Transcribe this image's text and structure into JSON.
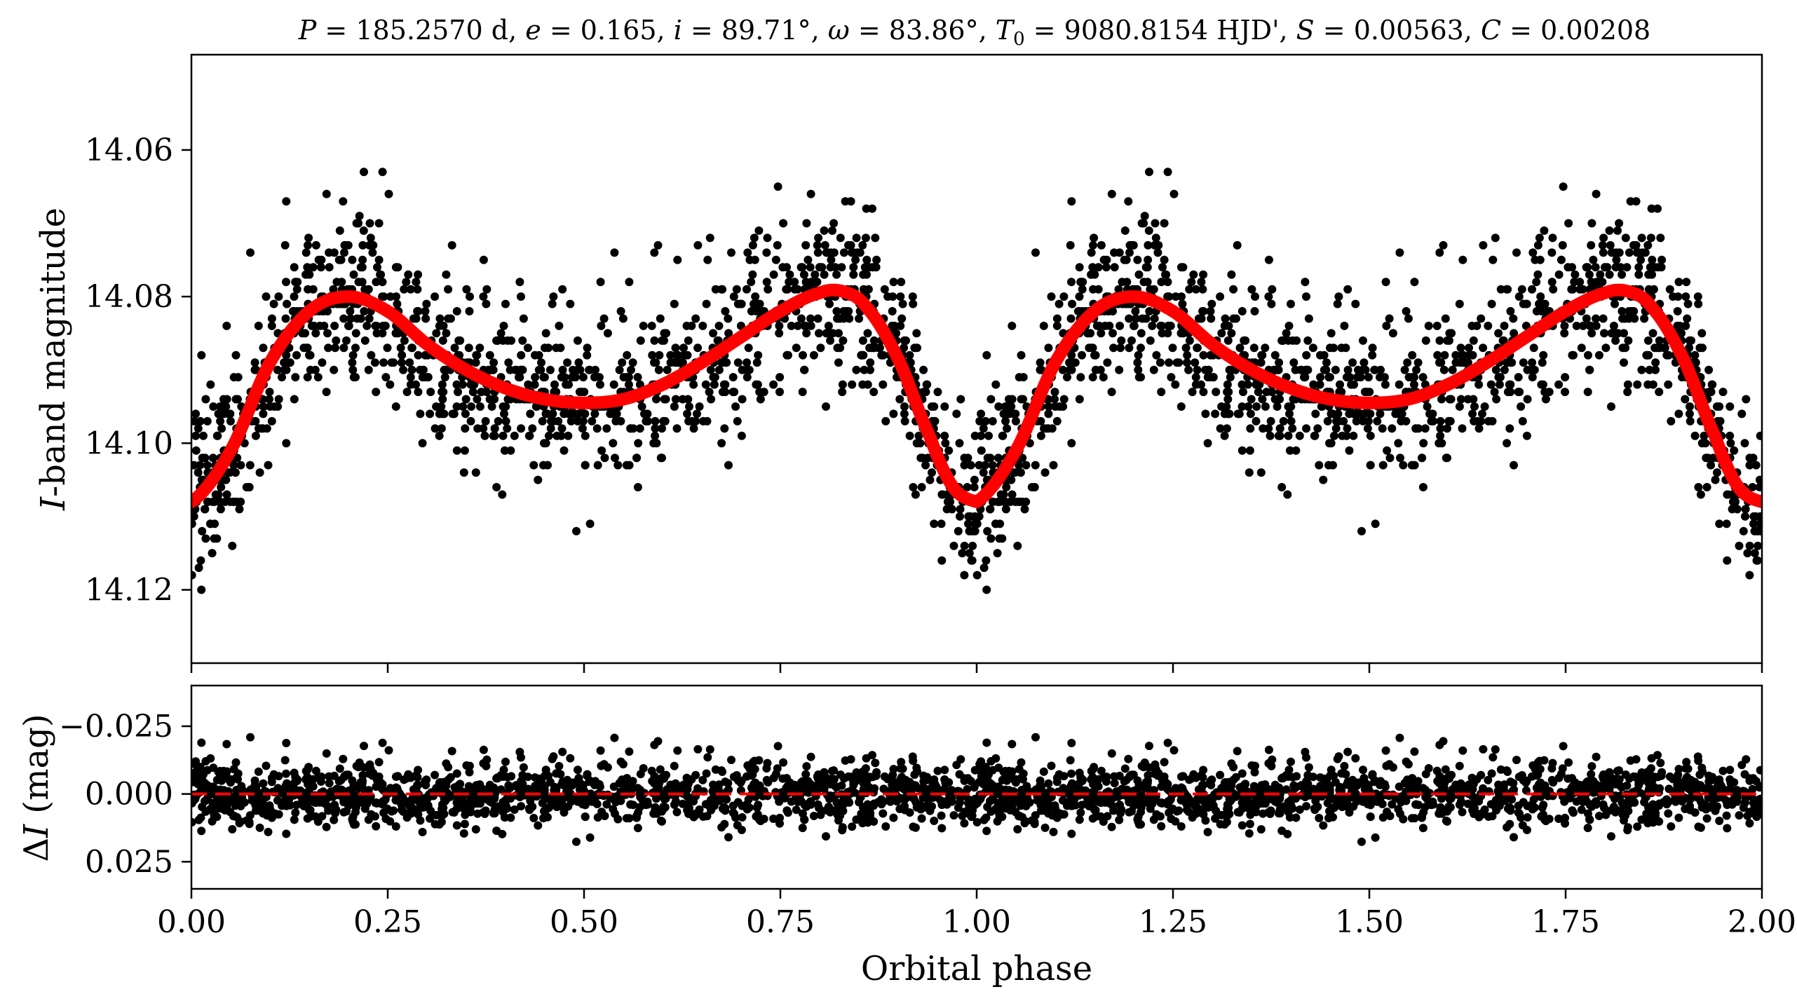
{
  "chart_data": [
    {
      "panel": "top",
      "type": "scatter",
      "title": "P = 185.2570 d, e = 0.165, i = 89.71°, ω = 83.86°, T0 = 9080.8154 HJD', S = 0.00563, C = 0.00208",
      "title_parts": {
        "P_sym": "P",
        "P_val": " = 185.2570 d, ",
        "e_sym": "e",
        "e_val": " = 0.165, ",
        "i_sym": "i",
        "i_val": " = 89.71°, ",
        "w_sym": "ω",
        "w_val": " = 83.86°, ",
        "T_sym": "T",
        "T_sub": "0",
        "T_val": " = 9080.8154 HJD', ",
        "S_sym": "S",
        "S_val": " = 0.00563, ",
        "C_sym": "C",
        "C_val": " = 0.00208"
      },
      "ylabel_italic": "I",
      "ylabel_rest": "-band magnitude",
      "xlim": [
        0.0,
        2.0
      ],
      "ylim": [
        14.13,
        14.047
      ],
      "y_inverted": true,
      "yticks": [
        14.06,
        14.08,
        14.1,
        14.12
      ],
      "ytick_labels": [
        "14.06",
        "14.08",
        "14.10",
        "14.12"
      ],
      "xticks": [
        0.0,
        0.25,
        0.5,
        0.75,
        1.0,
        1.25,
        1.5,
        1.75,
        2.0
      ],
      "series": [
        {
          "kind": "observed_points",
          "color": "#000000",
          "note_for_model_curve": "phase-folded I-band photometry, shown twice (phase 0-2)"
        },
        {
          "kind": "model_fit",
          "color": "#ff0000",
          "x": [
            0.0,
            0.05,
            0.1,
            0.15,
            0.2,
            0.25,
            0.3,
            0.35,
            0.4,
            0.45,
            0.5,
            0.55,
            0.6,
            0.65,
            0.7,
            0.75,
            0.8,
            0.83,
            0.86,
            0.9,
            0.94,
            0.97,
            1.0
          ],
          "y": [
            14.108,
            14.101,
            14.089,
            14.082,
            14.08,
            14.082,
            14.0865,
            14.09,
            14.0925,
            14.094,
            14.0945,
            14.094,
            14.092,
            14.089,
            14.0855,
            14.082,
            14.0795,
            14.0793,
            14.0815,
            14.0885,
            14.099,
            14.106,
            14.108
          ]
        }
      ]
    },
    {
      "panel": "bottom",
      "type": "scatter",
      "ylabel_delta": "Δ",
      "ylabel_italic": "I",
      "ylabel_rest": " (mag)",
      "xlabel": "Orbital phase",
      "xlim": [
        0.0,
        2.0
      ],
      "ylim": [
        0.035,
        -0.04
      ],
      "y_inverted": true,
      "yticks": [
        -0.025,
        0.0,
        0.025
      ],
      "ytick_labels": [
        "−0.025",
        "0.000",
        "0.025"
      ],
      "xticks": [
        0.0,
        0.25,
        0.5,
        0.75,
        1.0,
        1.25,
        1.5,
        1.75,
        2.0
      ],
      "xtick_labels": [
        "0.00",
        "0.25",
        "0.50",
        "0.75",
        "1.00",
        "1.25",
        "1.50",
        "1.75",
        "2.00"
      ],
      "series": [
        {
          "kind": "residual_points",
          "color": "#000000"
        },
        {
          "kind": "zero_line",
          "color": "#ff0000",
          "style": "dashed",
          "y": 0.0
        }
      ]
    }
  ],
  "colors": {
    "points": "#000000",
    "model": "#ff0000",
    "axes": "#000000",
    "background": "#ffffff"
  }
}
